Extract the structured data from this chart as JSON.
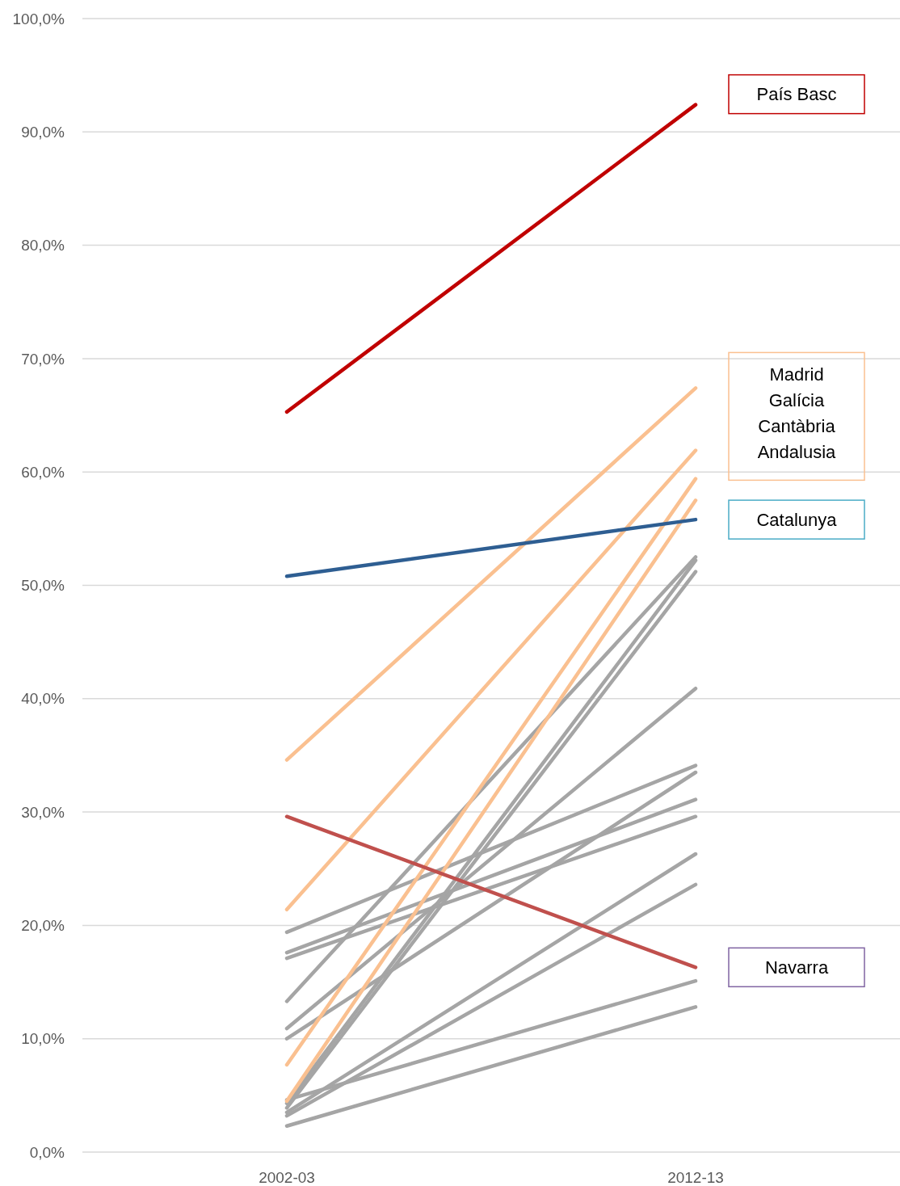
{
  "chart_data": {
    "type": "line",
    "categories": [
      "2002-03",
      "2012-13"
    ],
    "ylim": [
      0,
      100
    ],
    "yticks": [
      {
        "value": 0,
        "label": "0,0%"
      },
      {
        "value": 10,
        "label": "10,0%"
      },
      {
        "value": 20,
        "label": "20,0%"
      },
      {
        "value": 30,
        "label": "30,0%"
      },
      {
        "value": 40,
        "label": "40,0%"
      },
      {
        "value": 50,
        "label": "50,0%"
      },
      {
        "value": 60,
        "label": "60,0%"
      },
      {
        "value": 70,
        "label": "70,0%"
      },
      {
        "value": 80,
        "label": "80,0%"
      },
      {
        "value": 90,
        "label": "90,0%"
      },
      {
        "value": 100,
        "label": "100,0%"
      }
    ],
    "grid": "y",
    "marker": "none",
    "line_style": "solid",
    "series": [
      {
        "color": "#a5a5a5",
        "values": [
          19.4,
          34.1
        ]
      },
      {
        "color": "#a5a5a5",
        "values": [
          17.6,
          31.1
        ]
      },
      {
        "color": "#a5a5a5",
        "values": [
          17.1,
          29.6
        ]
      },
      {
        "color": "#a5a5a5",
        "values": [
          13.3,
          52.5
        ]
      },
      {
        "color": "#a5a5a5",
        "values": [
          10.9,
          40.9
        ]
      },
      {
        "color": "#a5a5a5",
        "values": [
          10.0,
          33.5
        ]
      },
      {
        "color": "#a5a5a5",
        "values": [
          4.6,
          15.1
        ]
      },
      {
        "color": "#a5a5a5",
        "values": [
          4.3,
          52.2
        ]
      },
      {
        "color": "#a5a5a5",
        "values": [
          3.9,
          51.2
        ]
      },
      {
        "color": "#a5a5a5",
        "values": [
          3.5,
          26.3
        ]
      },
      {
        "color": "#a5a5a5",
        "values": [
          3.2,
          23.6
        ]
      },
      {
        "color": "#a5a5a5",
        "values": [
          2.3,
          12.8
        ]
      },
      {
        "name": "Madrid",
        "color": "#fac090",
        "values": [
          34.6,
          67.4
        ]
      },
      {
        "name": "Galícia",
        "color": "#fac090",
        "values": [
          21.4,
          61.9
        ]
      },
      {
        "name": "Cantàbria",
        "color": "#fac090",
        "values": [
          7.7,
          59.4
        ]
      },
      {
        "name": "Andalusia",
        "color": "#fac090",
        "values": [
          4.5,
          57.5
        ]
      },
      {
        "name": "Navarra",
        "color": "#c0504d",
        "values": [
          29.6,
          16.3
        ]
      },
      {
        "name": "Catalunya",
        "color": "#2e5e92",
        "values": [
          50.8,
          55.8
        ]
      },
      {
        "name": "País Basc",
        "color": "#c00000",
        "values": [
          65.3,
          92.4
        ]
      }
    ]
  }
}
